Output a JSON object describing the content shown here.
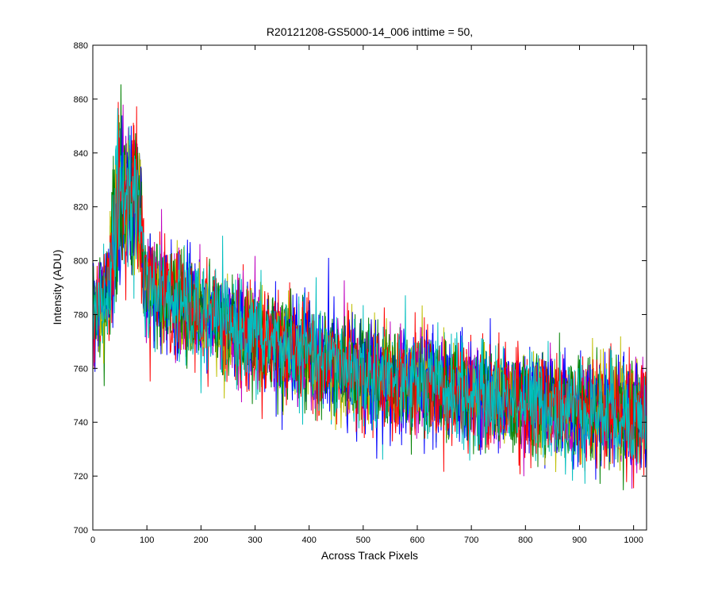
{
  "chart_data": {
    "type": "line",
    "title": "R20121208-GS5000-14_006 inttime = 50,",
    "xlabel": "Across Track Pixels",
    "ylabel": "Intensity (ADU)",
    "xlim": [
      0,
      1024
    ],
    "ylim": [
      700,
      880
    ],
    "x_ticks": [
      0,
      100,
      200,
      300,
      400,
      500,
      600,
      700,
      800,
      900,
      1000
    ],
    "y_ticks": [
      700,
      720,
      740,
      760,
      780,
      800,
      820,
      840,
      860,
      880
    ],
    "grid": false,
    "legend": "none",
    "x_count": 1024,
    "series_colors": [
      "#0000ff",
      "#008000",
      "#ff0000",
      "#00bfbf",
      "#bf00bf",
      "#bfbf00",
      "#0000ff",
      "#008000",
      "#ff0000",
      "#00bfbf"
    ],
    "trend": {
      "x": [
        0,
        30,
        35,
        45,
        60,
        75,
        90,
        95,
        150,
        300,
        500,
        700,
        1024
      ],
      "mean": [
        780,
        788,
        805,
        818,
        825,
        822,
        818,
        790,
        785,
        772,
        758,
        750,
        742
      ],
      "noise_sd": [
        8,
        8,
        12,
        14,
        14,
        14,
        12,
        9,
        9,
        9,
        9,
        9,
        9
      ]
    }
  }
}
